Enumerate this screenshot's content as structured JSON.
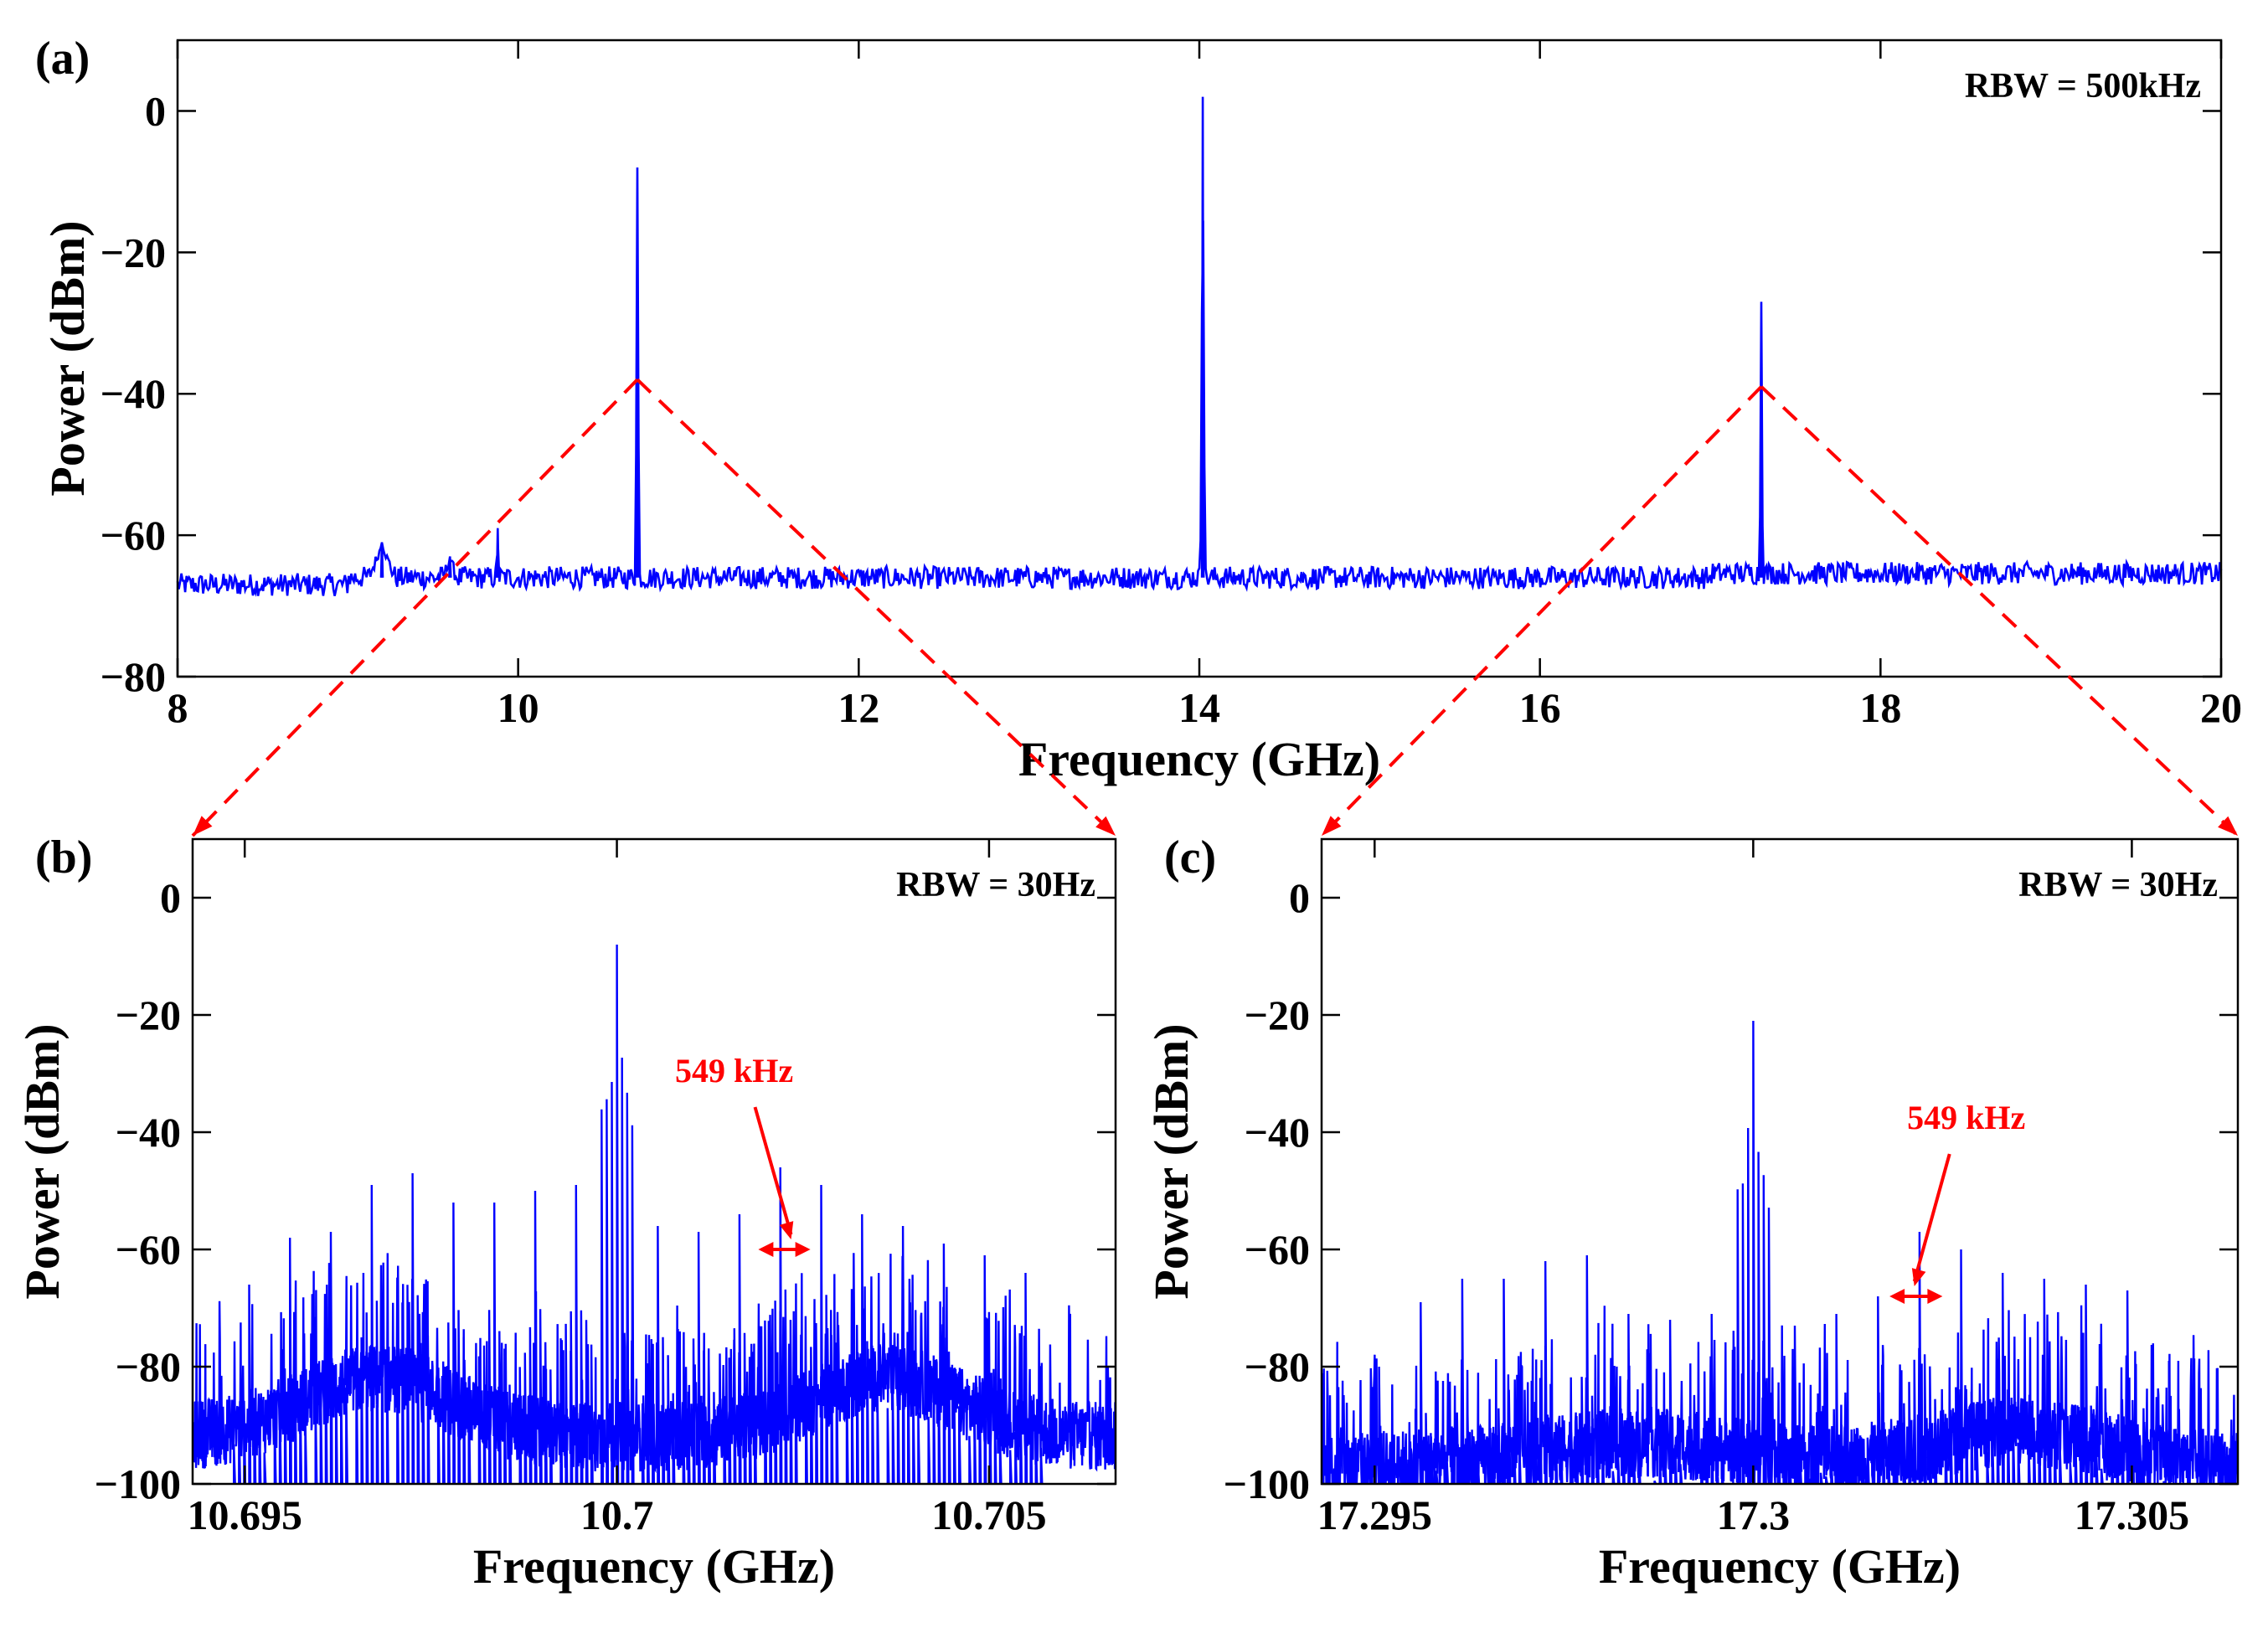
{
  "chart_data": [
    {
      "id": "a",
      "panel_label": "(a)",
      "type": "line",
      "annotation": "RBW = 500kHz",
      "xlabel": "Frequency (GHz)",
      "ylabel": "Power (dBm)",
      "xlim": [
        8,
        20
      ],
      "ylim": [
        -80,
        10
      ],
      "xticks": [
        8,
        10,
        12,
        14,
        16,
        18,
        20
      ],
      "xtick_labels": [
        "8",
        "10",
        "12",
        "14",
        "16",
        "18",
        "20"
      ],
      "yticks": [
        0,
        -20,
        -40,
        -60,
        -80
      ],
      "ytick_labels": [
        "0",
        "−20",
        "−40",
        "−60",
        "−80"
      ],
      "series_color": "#0000ff",
      "noise_floor_dbm": -66,
      "peaks": [
        {
          "x": 9.2,
          "y": -61,
          "w": 0.08
        },
        {
          "x": 9.6,
          "y": -63,
          "w": 0.04
        },
        {
          "x": 9.88,
          "y": -59,
          "w": 0.008
        },
        {
          "x": 10.7,
          "y": -8,
          "w": 0.012
        },
        {
          "x": 14.02,
          "y": 2,
          "w": 0.014
        },
        {
          "x": 17.3,
          "y": -27,
          "w": 0.01
        }
      ]
    },
    {
      "id": "b",
      "panel_label": "(b)",
      "type": "line",
      "annotation": "RBW = 30Hz",
      "xlabel": "Frequency (GHz)",
      "ylabel": "Power (dBm)",
      "xlim": [
        10.6943,
        10.7067
      ],
      "ylim": [
        -100,
        10
      ],
      "xticks": [
        10.695,
        10.7,
        10.705
      ],
      "xtick_labels": [
        "10.695",
        "10.7",
        "10.705"
      ],
      "yticks": [
        0,
        -20,
        -40,
        -60,
        -80,
        -100
      ],
      "ytick_labels": [
        "0",
        "−20",
        "−40",
        "−60",
        "−80",
        "−100"
      ],
      "series_color": "#0000ff",
      "carrier": {
        "x": 10.7,
        "y": -8
      },
      "comb_spacing_mhz": 0.549,
      "comb_peaks_dbm": [
        -66,
        -58,
        -57,
        -49,
        -47,
        -52,
        -52,
        -50,
        -49,
        -8,
        -56,
        -57,
        -54,
        -46,
        -49,
        -54,
        -56,
        -59,
        -61,
        -64
      ],
      "spacing_annotation": {
        "text": "549 kHz",
        "x1": 10.7019,
        "x2": 10.7026,
        "y": -60
      }
    },
    {
      "id": "c",
      "panel_label": "(c)",
      "type": "line",
      "annotation": "RBW = 30Hz",
      "xlabel": "Frequency (GHz)",
      "ylabel": "Power (dBm)",
      "xlim": [
        17.2943,
        17.3064
      ],
      "ylim": [
        -100,
        10
      ],
      "xticks": [
        17.295,
        17.3,
        17.305
      ],
      "xtick_labels": [
        "17.295",
        "17.3",
        "17.305"
      ],
      "yticks": [
        0,
        -20,
        -40,
        -60,
        -80,
        -100
      ],
      "ytick_labels": [
        "0",
        "−20",
        "−40",
        "−60",
        "−80",
        "−100"
      ],
      "series_color": "#0000ff",
      "carrier": {
        "x": 17.3,
        "y": -21
      },
      "comb_spacing_mhz": 0.549,
      "comb_peaks_dbm": [
        -80,
        -69,
        -65,
        -65,
        -62,
        -61,
        -71,
        -72,
        -71,
        -21,
        -73,
        -71,
        -68,
        -57,
        -60,
        -64,
        -65,
        -66,
        -67,
        -79
      ],
      "spacing_annotation": {
        "text": "549 kHz",
        "x1": 17.3018,
        "x2": 17.3025,
        "y": -68
      }
    }
  ]
}
